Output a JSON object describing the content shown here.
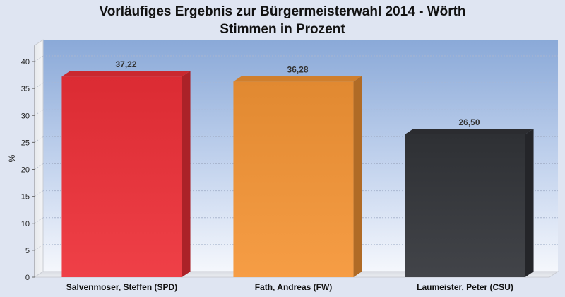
{
  "chart_data": {
    "type": "bar",
    "title": "Vorläufiges Ergebnis zur Bürgermeisterwahl 2014 - Wörth",
    "subtitle": "Stimmen in Prozent",
    "xlabel": "",
    "ylabel": "%",
    "ylim": [
      0,
      43
    ],
    "yticks": [
      0,
      5,
      10,
      15,
      20,
      25,
      30,
      35,
      40
    ],
    "categories": [
      "Salvenmoser, Steffen (SPD)",
      "Fath, Andreas (FW)",
      "Laumeister, Peter (CSU)"
    ],
    "values": [
      37.22,
      36.28,
      26.5
    ],
    "value_labels": [
      "37,22",
      "36,28",
      "26,50"
    ],
    "bar_colors": [
      "#ee2f37",
      "#f59535",
      "#323439"
    ],
    "grid": true,
    "legend": "none"
  }
}
